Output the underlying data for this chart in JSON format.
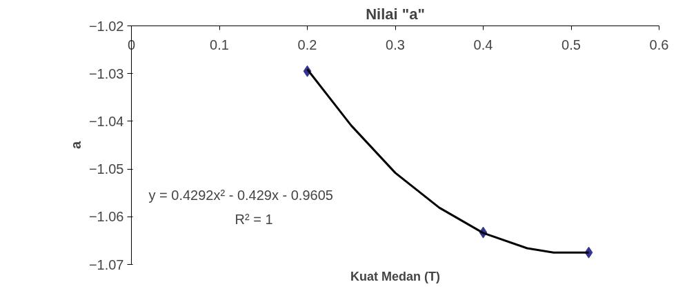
{
  "chart_data": {
    "type": "scatter",
    "title": "Nilai \"a\"",
    "xlabel": "Kuat Medan (T)",
    "ylabel": "a",
    "x": [
      0.2,
      0.4,
      0.52
    ],
    "series": [
      {
        "color": "#333399",
        "values": [
          -1.0295,
          -1.0633,
          -1.0675
        ],
        "marker": "diamond"
      },
      {
        "type": "line",
        "color": "#000000",
        "x": [
          0.2,
          0.25,
          0.3,
          0.35,
          0.4,
          0.45,
          0.48,
          0.52
        ],
        "values": [
          -1.0291,
          -1.0409,
          -1.0508,
          -1.0581,
          -1.0634,
          -1.0666,
          -1.0675,
          -1.0675
        ],
        "marker": "none"
      }
    ],
    "annotations": [
      "y = 0.4292x² - 0.429x - 0.9605",
      "R² = 1"
    ],
    "xlim": [
      0,
      0.6
    ],
    "ylim": [
      -1.07,
      -1.02
    ],
    "xticks": [
      0,
      0.1,
      0.2,
      0.3,
      0.4,
      0.5,
      0.6
    ],
    "yticks": [
      -1.07,
      -1.06,
      -1.05,
      -1.04,
      -1.03,
      -1.02
    ],
    "grid": false
  }
}
